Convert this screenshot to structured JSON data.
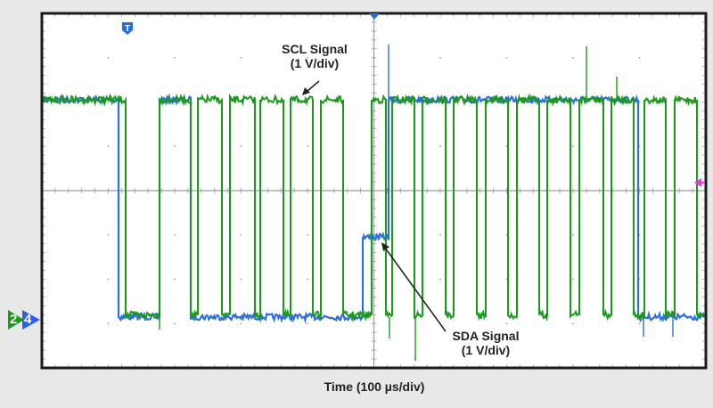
{
  "chart_data": {
    "type": "line",
    "title": "",
    "xlabel": "Time (100 µs/div)",
    "ylabel": "",
    "grid": true,
    "x_divisions": 10,
    "y_divisions": 8,
    "time_per_div_us": 100,
    "volts_per_div": 1,
    "legend": "none",
    "annotations": [
      {
        "text": "SCL Signal\n(1 V/div)",
        "line1": "SCL Signal",
        "line2": "(1 V/div)",
        "points_to": "SCL"
      },
      {
        "text": "SDA Signal\n(1 V/div)",
        "line1": "SDA Signal",
        "line2": "(1 V/div)",
        "points_to": "SDA"
      }
    ],
    "markers": {
      "trigger": "T",
      "channel_markers": [
        "2",
        "4"
      ],
      "right_marker": "trigger-level"
    },
    "series": [
      {
        "name": "SCL",
        "color": "#1a9a1a",
        "high_level_div": 2.0,
        "low_level_div": -3.0,
        "description": "Clock: high until ~0.9 div, then periodic pulses (~0.45 div period)"
      },
      {
        "name": "SDA",
        "color": "#2f6fe0",
        "high_level_div": 2.0,
        "low_level_div": -3.0,
        "intermediate_level_div": -1.0,
        "description": "Data: high, falls low ~1.2 div, brief high ~1.8-2.2 div, low until ~4.9 div, steps to -1 div, then high from ~5.1 div to ~9.0 div, then low"
      }
    ]
  },
  "labels": {
    "scl_line1": "SCL Signal",
    "scl_line2": "(1 V/div)",
    "sda_line1": "SDA Signal",
    "sda_line2": "(1 V/div)",
    "x_axis": "Time (100 µs/div)",
    "trigger_marker": "T",
    "ch2": "2",
    "ch4": "4"
  },
  "colors": {
    "scl": "#1a9a1a",
    "sda": "#2f6fe0",
    "grid": "#9a9ab0",
    "trigger": "#1f6fe5",
    "trigger_level": "#e040d0",
    "border": "#1a1a1a",
    "background": "#e8e8e8",
    "screen": "#ffffff"
  }
}
